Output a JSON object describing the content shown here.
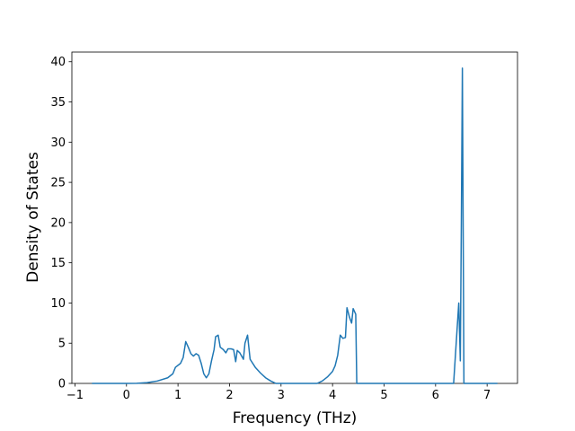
{
  "chart_data": {
    "type": "line",
    "xlabel": "Frequency (THz)",
    "ylabel": "Density of States",
    "x": [
      -0.67,
      0,
      0.2,
      0.4,
      0.6,
      0.8,
      0.9,
      0.95,
      1.05,
      1.1,
      1.15,
      1.2,
      1.25,
      1.3,
      1.35,
      1.4,
      1.45,
      1.5,
      1.55,
      1.6,
      1.65,
      1.7,
      1.73,
      1.78,
      1.82,
      1.88,
      1.93,
      1.97,
      2.03,
      2.08,
      2.12,
      2.15,
      2.2,
      2.27,
      2.3,
      2.35,
      2.4,
      2.5,
      2.6,
      2.7,
      2.8,
      2.9,
      3.7,
      3.8,
      3.9,
      4.0,
      4.05,
      4.1,
      4.15,
      4.2,
      4.25,
      4.28,
      4.33,
      4.37,
      4.4,
      4.45,
      4.47,
      6.35,
      6.4,
      6.45,
      6.48,
      6.5,
      6.52,
      6.55,
      7.2
    ],
    "series": [
      {
        "color": "#1f77b4",
        "values": [
          0,
          0,
          0.02,
          0.1,
          0.3,
          0.7,
          1.2,
          2.0,
          2.5,
          3.2,
          5.2,
          4.5,
          3.7,
          3.4,
          3.7,
          3.5,
          2.5,
          1.2,
          0.7,
          1.2,
          2.8,
          4.2,
          5.8,
          6.0,
          4.5,
          4.2,
          3.8,
          4.3,
          4.3,
          4.2,
          2.7,
          4.1,
          3.8,
          3.0,
          5.0,
          6.0,
          3.0,
          2.0,
          1.3,
          0.7,
          0.3,
          0,
          0,
          0.3,
          0.8,
          1.5,
          2.2,
          3.5,
          6.0,
          5.6,
          5.7,
          9.4,
          8.2,
          7.5,
          9.3,
          8.6,
          0,
          0,
          5,
          10.0,
          2.8,
          20,
          39.2,
          0,
          0
        ]
      }
    ],
    "xlim": [
      -1.06,
      7.59
    ],
    "ylim": [
      0,
      41.2
    ],
    "xticks": [
      {
        "value": -1,
        "label": "−1"
      },
      0,
      1,
      2,
      3,
      4,
      5,
      6,
      7
    ],
    "yticks": [
      0,
      5,
      10,
      15,
      20,
      25,
      30,
      35,
      40
    ]
  }
}
